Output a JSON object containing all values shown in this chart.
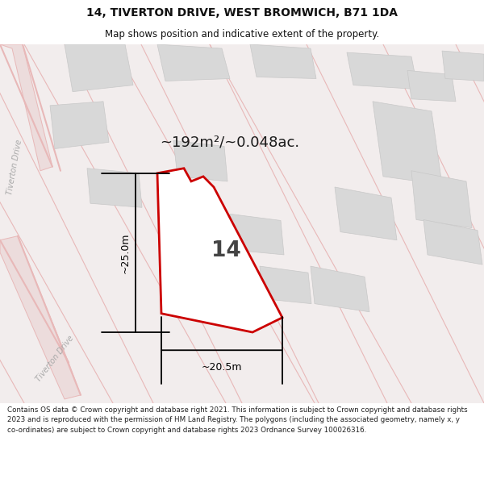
{
  "title": "14, TIVERTON DRIVE, WEST BROMWICH, B71 1DA",
  "subtitle": "Map shows position and indicative extent of the property.",
  "area_text": "~192m²/~0.048ac.",
  "dim_width": "~20.5m",
  "dim_height": "~25.0m",
  "property_number": "14",
  "footer": "Contains OS data © Crown copyright and database right 2021. This information is subject to Crown copyright and database rights 2023 and is reproduced with the permission of HM Land Registry. The polygons (including the associated geometry, namely x, y co-ordinates) are subject to Crown copyright and database rights 2023 Ordnance Survey 100026316.",
  "bg_color": "#f2eded",
  "road_color": "#e8b8b8",
  "road_fill": "#eedede",
  "building_color": "#d8d8d8",
  "building_edge": "#c8c8c8",
  "property_edge": "#cc0000",
  "property_fill": "#ffffff",
  "dim_color": "#000000",
  "road_label": "#aaaaaa",
  "title_color": "#111111",
  "footer_color": "#222222",
  "panel_bg": "#ffffff"
}
